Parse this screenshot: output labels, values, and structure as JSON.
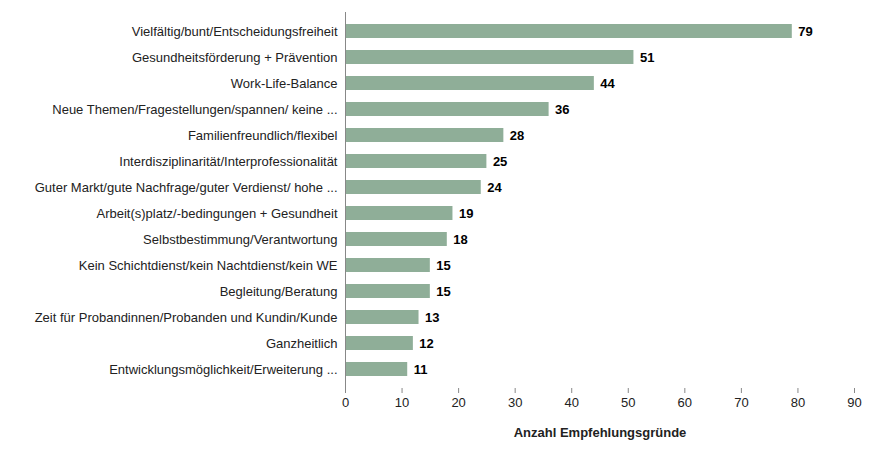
{
  "chart_data": {
    "type": "bar",
    "orientation": "horizontal",
    "x_label": "Anzahl Empfehlungsgründe",
    "categories": [
      "Vielfältig/bunt/Entscheidungsfreiheit",
      "Gesundheitsförderung + Prävention",
      "Work-Life-Balance",
      "Neue Themen/Fragestellungen/spannen/ keine ...",
      "Familienfreundlich/flexibel",
      "Interdisziplinarität/Interprofessionalität",
      "Guter Markt/gute Nachfrage/guter Verdienst/ hohe ...",
      "Arbeit(s)platz/-bedingungen + Gesundheit",
      "Selbstbestimmung/Verantwortung",
      "Kein Schichtdienst/kein Nachtdienst/kein WE",
      "Begleitung/Beratung",
      "Zeit für Probandinnen/Probanden und Kundin/Kunde",
      "Ganzheitlich",
      "Entwicklungsmöglichkeit/Erweiterung ..."
    ],
    "values": [
      79,
      51,
      44,
      36,
      28,
      25,
      24,
      19,
      18,
      15,
      15,
      13,
      12,
      11
    ],
    "color": "#8fae98",
    "xlim": [
      0,
      90
    ],
    "xticks": [
      0,
      10,
      20,
      30,
      40,
      50,
      60,
      70,
      80,
      90
    ],
    "grid": false,
    "data_labels": true
  }
}
